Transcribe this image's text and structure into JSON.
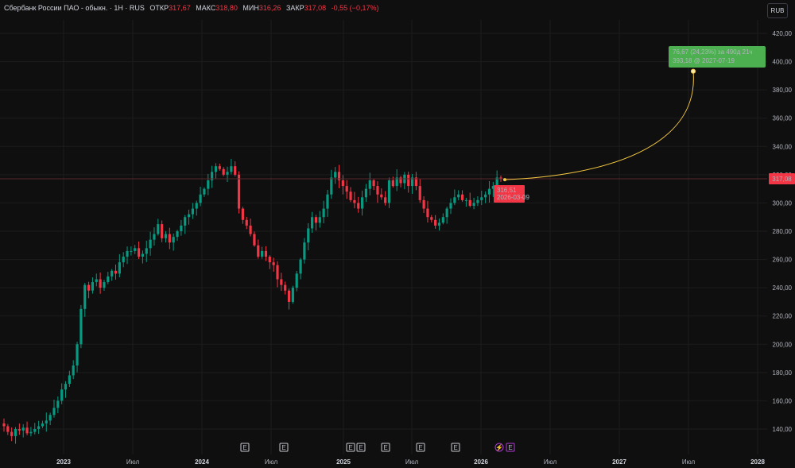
{
  "header": {
    "title": "Сбербанк России ПАО - обыкн. · 1Н · RUS",
    "open_label": "ОТКР",
    "open_value": "317,67",
    "high_label": "МАКС",
    "high_value": "318,80",
    "low_label": "МИН",
    "low_value": "316,26",
    "close_label": "ЗАКР",
    "close_value": "317,08",
    "change": "-0,55 (−0,17%)"
  },
  "currency_button": "RUB",
  "price_tag": "317,08",
  "point_marker": {
    "price": "316,51",
    "date": "2026-03-09"
  },
  "projection": {
    "title": "76,67 (24,23%) за 490д 21ч",
    "sub": "393,18 @ 2027-07-19",
    "target_price": 393.18,
    "from_price": 316.51
  },
  "colors": {
    "up": "#089981",
    "down": "#f23645",
    "target_box": "#4caf50",
    "arc": "#f5c842",
    "grid": "#1c1c1c",
    "event": "#b03ad6"
  },
  "events": [
    "E",
    "E",
    "E",
    "E",
    "E",
    "E",
    "E",
    "⚡",
    "E"
  ],
  "chart_data": {
    "type": "candlestick",
    "ylim": [
      130,
      430
    ],
    "y_ticks": [
      "140,00",
      "160,00",
      "180,00",
      "200,00",
      "220,00",
      "240,00",
      "260,00",
      "280,00",
      "300,00",
      "320,00",
      "340,00",
      "360,00",
      "380,00",
      "400,00",
      "420,00"
    ],
    "x_ticks": [
      "2023",
      "Июл",
      "2024",
      "Июл",
      "2025",
      "Июл",
      "2026",
      "Июл",
      "2027",
      "Июл",
      "2028"
    ],
    "x_ticks_bold": [
      "2023",
      "2024",
      "2025",
      "2026",
      "2027",
      "2028"
    ],
    "close_series": [
      142,
      138,
      135,
      140,
      139,
      141,
      137,
      138,
      140,
      142,
      144,
      146,
      150,
      155,
      160,
      168,
      172,
      178,
      185,
      200,
      225,
      242,
      238,
      244,
      246,
      240,
      244,
      248,
      252,
      250,
      258,
      262,
      266,
      266,
      268,
      262,
      264,
      268,
      274,
      278,
      285,
      275,
      278,
      272,
      276,
      280,
      284,
      290,
      292,
      296,
      300,
      306,
      310,
      316,
      322,
      326,
      324,
      320,
      322,
      326,
      320,
      296,
      288,
      284,
      278,
      270,
      262,
      266,
      262,
      258,
      256,
      246,
      242,
      238,
      230,
      240,
      250,
      260,
      272,
      282,
      290,
      286,
      290,
      296,
      306,
      318,
      322,
      316,
      312,
      308,
      302,
      300,
      296,
      304,
      310,
      316,
      312,
      306,
      304,
      300,
      316,
      312,
      318,
      314,
      320,
      312,
      318,
      312,
      302,
      296,
      290,
      288,
      284,
      286,
      290,
      296,
      300,
      304,
      306,
      302,
      302,
      298,
      300,
      302,
      304,
      306,
      310,
      312,
      318,
      317
    ]
  }
}
